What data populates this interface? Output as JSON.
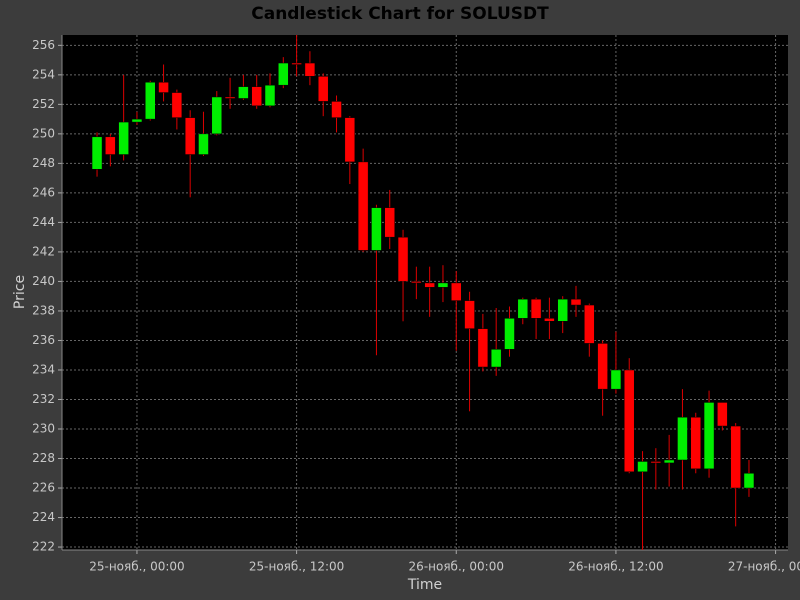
{
  "chart_data": {
    "type": "candlestick",
    "title": "Candlestick Chart for SOLUSDT",
    "x_label": "Time",
    "y_label": "Price",
    "x": [
      "24-нояб., 21:00",
      "24-нояб., 22:00",
      "24-нояб., 23:00",
      "25-нояб., 00:00",
      "25-нояб., 01:00",
      "25-нояб., 02:00",
      "25-нояб., 03:00",
      "25-нояб., 04:00",
      "25-нояб., 05:00",
      "25-нояб., 06:00",
      "25-нояб., 07:00",
      "25-нояб., 08:00",
      "25-нояб., 09:00",
      "25-нояб., 10:00",
      "25-нояб., 11:00",
      "25-нояб., 12:00",
      "25-нояб., 13:00",
      "25-нояб., 14:00",
      "25-нояб., 15:00",
      "25-нояб., 16:00",
      "25-нояб., 17:00",
      "25-нояб., 18:00",
      "25-нояб., 19:00",
      "25-нояб., 20:00",
      "25-нояб., 21:00",
      "25-нояб., 22:00",
      "25-нояб., 23:00",
      "26-нояб., 00:00",
      "26-нояб., 01:00",
      "26-нояб., 02:00",
      "26-нояб., 03:00",
      "26-нояб., 04:00",
      "26-нояб., 05:00",
      "26-нояб., 06:00",
      "26-нояб., 07:00",
      "26-нояб., 08:00",
      "26-нояб., 09:00",
      "26-нояб., 10:00",
      "26-нояб., 11:00",
      "26-нояб., 12:00",
      "26-нояб., 13:00",
      "26-нояб., 14:00",
      "26-нояб., 15:00",
      "26-нояб., 16:00",
      "26-нояб., 17:00",
      "26-нояб., 18:00",
      "26-нояб., 19:00",
      "26-нояб., 20:00",
      "26-нояб., 21:00",
      "26-нояб., 22:00"
    ],
    "open": [
      247.6,
      249.8,
      248.6,
      250.8,
      251.0,
      253.5,
      252.8,
      251.1,
      248.6,
      250.0,
      252.5,
      252.4,
      253.2,
      251.9,
      253.3,
      254.8,
      254.8,
      253.9,
      252.2,
      251.1,
      248.1,
      242.1,
      245.0,
      243.0,
      240.0,
      239.9,
      239.6,
      239.9,
      238.7,
      236.8,
      234.2,
      235.4,
      237.5,
      238.8,
      237.5,
      237.3,
      238.8,
      238.4,
      235.8,
      232.7,
      234.0,
      227.1,
      227.8,
      227.7,
      227.9,
      230.8,
      227.3,
      231.8,
      230.2,
      226.0
    ],
    "high": [
      250.1,
      250.0,
      254.0,
      251.5,
      253.6,
      254.7,
      253.0,
      251.6,
      251.5,
      252.9,
      253.8,
      254.0,
      254.0,
      254.1,
      255.2,
      256.7,
      255.6,
      254.1,
      252.6,
      251.2,
      249.0,
      245.2,
      246.2,
      243.5,
      241.0,
      241.0,
      241.1,
      240.7,
      239.3,
      237.8,
      238.2,
      238.3,
      238.9,
      238.9,
      238.9,
      239.0,
      239.7,
      238.5,
      236.0,
      236.6,
      234.8,
      228.5,
      228.7,
      229.6,
      232.7,
      231.1,
      232.6,
      231.8,
      230.4,
      227.9
    ],
    "low": [
      247.1,
      247.8,
      248.2,
      250.6,
      250.9,
      252.2,
      250.3,
      245.7,
      248.5,
      249.9,
      251.7,
      252.3,
      251.7,
      251.8,
      253.1,
      253.9,
      253.3,
      251.2,
      250.1,
      246.6,
      242.0,
      235.0,
      242.2,
      237.3,
      238.8,
      237.6,
      238.6,
      235.3,
      231.2,
      233.9,
      233.6,
      234.9,
      237.1,
      236.1,
      236.1,
      236.5,
      237.6,
      234.9,
      230.9,
      232.4,
      227.0,
      221.8,
      225.9,
      226.1,
      225.9,
      227.0,
      226.7,
      229.9,
      223.4,
      225.4
    ],
    "close": [
      249.8,
      248.6,
      250.8,
      251.0,
      253.5,
      252.8,
      251.1,
      248.6,
      250.0,
      252.5,
      252.4,
      253.2,
      251.9,
      253.3,
      254.8,
      254.7,
      253.9,
      252.2,
      251.1,
      248.1,
      242.1,
      245.0,
      243.0,
      240.0,
      239.9,
      239.6,
      239.9,
      238.7,
      236.8,
      234.2,
      235.4,
      237.5,
      238.8,
      237.5,
      237.3,
      238.8,
      238.4,
      235.8,
      232.7,
      234.0,
      227.1,
      227.8,
      227.7,
      227.9,
      230.8,
      227.3,
      231.8,
      230.2,
      226.0,
      227.0
    ],
    "up_color": "#00ee00",
    "down_color": "#ff0000",
    "wick_color": "#dd0000",
    "xlim": [
      "24-нояб., 18:22",
      "27-нояб., 00:56"
    ],
    "xticks": [
      "25-нояб., 00:00",
      "25-нояб., 12:00",
      "26-нояб., 00:00",
      "26-нояб., 12:00",
      "27-нояб., 00:00"
    ],
    "ylim": [
      221.8,
      256.7
    ],
    "yticks": [
      222,
      224,
      226,
      228,
      230,
      232,
      234,
      236,
      238,
      240,
      242,
      244,
      246,
      248,
      250,
      252,
      254,
      256
    ],
    "grid": true
  }
}
